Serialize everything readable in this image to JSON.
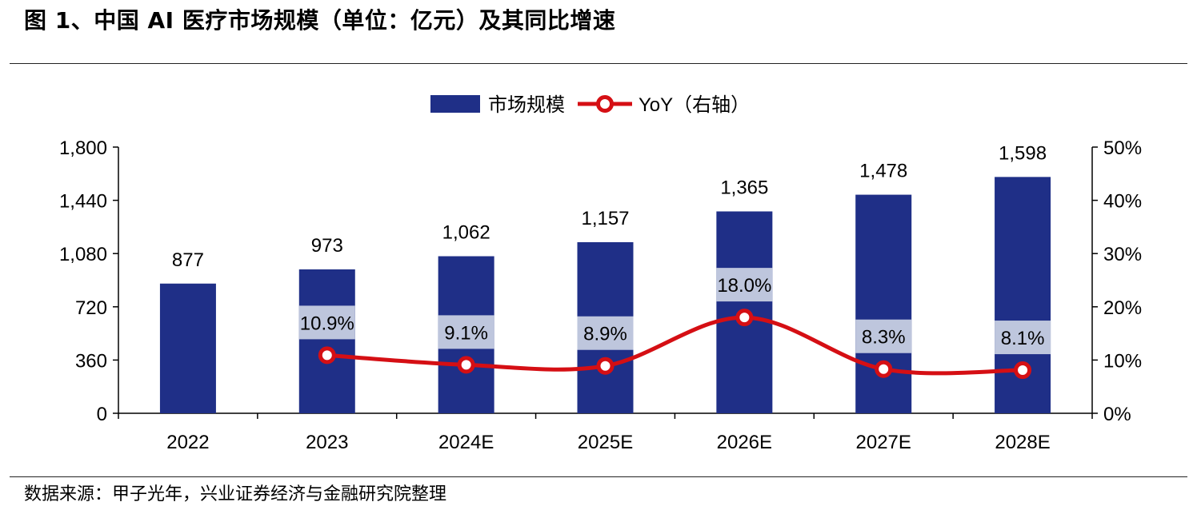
{
  "figure": {
    "title": "图 1、中国 AI 医疗市场规模（单位：亿元）及其同比增速",
    "source": "数据来源：甲子光年，兴业证券经济与金融研究院整理"
  },
  "chart_data": {
    "type": "bar",
    "categories": [
      "2022",
      "2023",
      "2024E",
      "2025E",
      "2026E",
      "2027E",
      "2028E"
    ],
    "series": [
      {
        "name": "市场规模",
        "type": "bar",
        "axis": "left",
        "color": "#1F2F87",
        "values": [
          877,
          973,
          1062,
          1157,
          1365,
          1478,
          1598
        ],
        "labels": [
          "877",
          "973",
          "1,062",
          "1,157",
          "1,365",
          "1,478",
          "1,598"
        ]
      },
      {
        "name": "YoY（右轴）",
        "type": "line",
        "axis": "right",
        "color": "#D50F14",
        "values": [
          null,
          10.9,
          9.1,
          8.9,
          18.0,
          8.3,
          8.1
        ],
        "labels": [
          "",
          "10.9%",
          "9.1%",
          "8.9%",
          "18.0%",
          "8.3%",
          "8.1%"
        ]
      }
    ],
    "y_left": {
      "min": 0,
      "max": 1800,
      "ticks": [
        0,
        360,
        720,
        1080,
        1440,
        1800
      ],
      "tick_labels": [
        "0",
        "360",
        "720",
        "1,080",
        "1,440",
        "1,800"
      ]
    },
    "y_right": {
      "min": 0,
      "max": 50,
      "ticks": [
        0,
        10,
        20,
        30,
        40,
        50
      ],
      "tick_labels": [
        "0%",
        "10%",
        "20%",
        "30%",
        "40%",
        "50%"
      ]
    },
    "legend": "top-center",
    "grid": false,
    "label_box_color": "#BEC6DD"
  }
}
